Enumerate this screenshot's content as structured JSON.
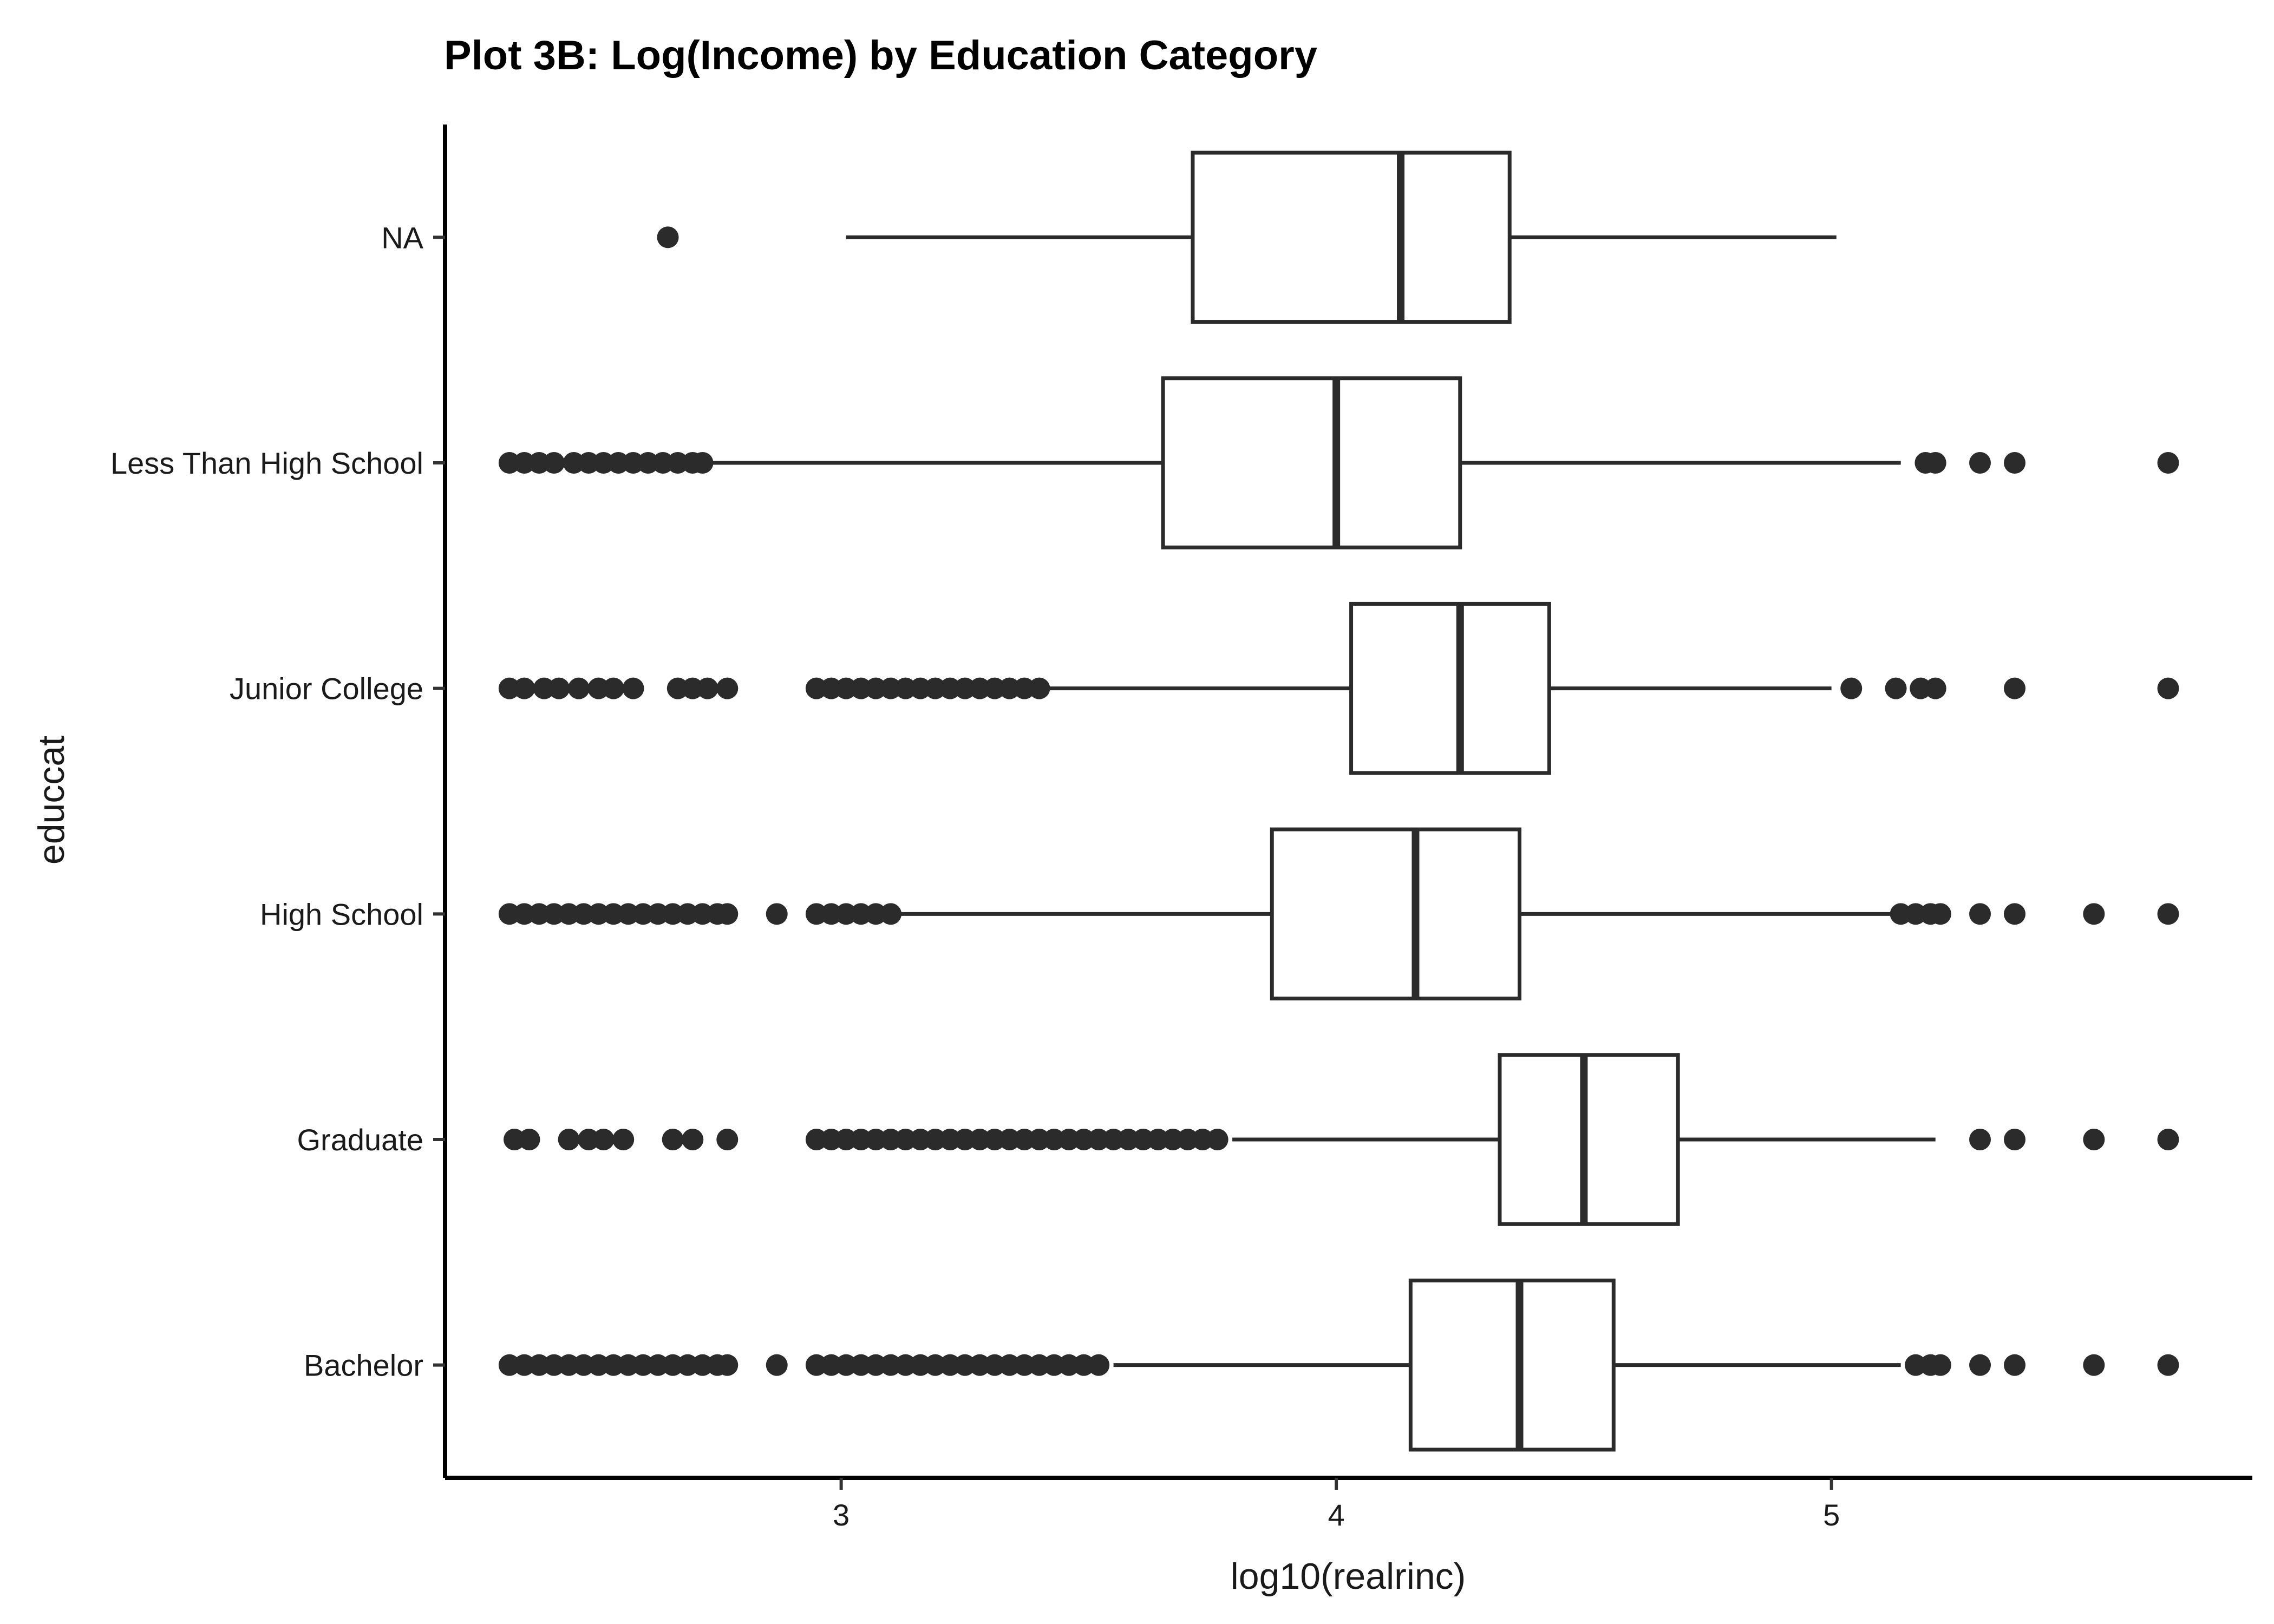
{
  "chart_data": {
    "type": "boxplot",
    "orientation": "horizontal",
    "title": "Plot 3B: Log(Income) by Education Category",
    "xlabel": "log10(realrinc)",
    "ylabel": "educcat",
    "xlim": [
      2.2,
      5.85
    ],
    "x_ticks": [
      3,
      4,
      5
    ],
    "grid": false,
    "legend": "none",
    "colors": {
      "box_stroke": "#2b2b2b",
      "box_fill": "#ffffff",
      "outlier": "#2b2b2b"
    },
    "categories": [
      "NA",
      "Less Than High School",
      "Junior College",
      "High School",
      "Graduate",
      "Bachelor"
    ],
    "series": [
      {
        "category": "NA",
        "whisker_low": 3.01,
        "q1": 3.71,
        "median": 4.13,
        "q3": 4.35,
        "whisker_high": 5.01,
        "outliers": [
          2.65
        ]
      },
      {
        "category": "Less Than High School",
        "whisker_low": 2.74,
        "q1": 3.65,
        "median": 4.0,
        "q3": 4.25,
        "whisker_high": 5.14,
        "outliers": [
          2.33,
          2.36,
          2.39,
          2.42,
          2.46,
          2.49,
          2.52,
          2.55,
          2.58,
          2.61,
          2.64,
          2.67,
          2.7,
          2.72,
          5.19,
          5.21,
          5.3,
          5.37,
          5.68
        ]
      },
      {
        "category": "Junior College",
        "whisker_low": 3.42,
        "q1": 4.03,
        "median": 4.25,
        "q3": 4.43,
        "whisker_high": 5.0,
        "outliers": [
          2.33,
          2.36,
          2.4,
          2.43,
          2.47,
          2.51,
          2.54,
          2.58,
          2.67,
          2.7,
          2.73,
          2.77,
          2.95,
          2.98,
          3.01,
          3.04,
          3.07,
          3.1,
          3.13,
          3.16,
          3.19,
          3.22,
          3.25,
          3.28,
          3.31,
          3.34,
          3.37,
          3.4,
          5.04,
          5.13,
          5.18,
          5.21,
          5.37,
          5.68
        ]
      },
      {
        "category": "High School",
        "whisker_low": 3.12,
        "q1": 3.87,
        "median": 4.16,
        "q3": 4.37,
        "whisker_high": 5.12,
        "outliers": [
          2.33,
          2.36,
          2.39,
          2.42,
          2.45,
          2.48,
          2.51,
          2.54,
          2.57,
          2.6,
          2.63,
          2.66,
          2.69,
          2.72,
          2.75,
          2.77,
          2.87,
          2.95,
          2.98,
          3.01,
          3.04,
          3.07,
          3.1,
          5.14,
          5.17,
          5.2,
          5.22,
          5.3,
          5.37,
          5.53,
          5.68
        ]
      },
      {
        "category": "Graduate",
        "whisker_low": 3.79,
        "q1": 4.33,
        "median": 4.5,
        "q3": 4.69,
        "whisker_high": 5.21,
        "outliers": [
          2.34,
          2.37,
          2.45,
          2.49,
          2.52,
          2.56,
          2.66,
          2.7,
          2.77,
          2.95,
          2.98,
          3.01,
          3.04,
          3.07,
          3.1,
          3.13,
          3.16,
          3.19,
          3.22,
          3.25,
          3.28,
          3.31,
          3.34,
          3.37,
          3.4,
          3.43,
          3.46,
          3.49,
          3.52,
          3.55,
          3.58,
          3.61,
          3.64,
          3.67,
          3.7,
          3.73,
          3.76,
          5.3,
          5.37,
          5.53,
          5.68
        ]
      },
      {
        "category": "Bachelor",
        "whisker_low": 3.55,
        "q1": 4.15,
        "median": 4.37,
        "q3": 4.56,
        "whisker_high": 5.14,
        "outliers": [
          2.33,
          2.36,
          2.39,
          2.42,
          2.45,
          2.48,
          2.51,
          2.54,
          2.57,
          2.6,
          2.63,
          2.66,
          2.69,
          2.72,
          2.75,
          2.77,
          2.87,
          2.95,
          2.98,
          3.01,
          3.04,
          3.07,
          3.1,
          3.13,
          3.16,
          3.19,
          3.22,
          3.25,
          3.28,
          3.31,
          3.34,
          3.37,
          3.4,
          3.43,
          3.46,
          3.49,
          3.52,
          5.17,
          5.2,
          5.22,
          5.3,
          5.37,
          5.53,
          5.68
        ]
      }
    ]
  }
}
